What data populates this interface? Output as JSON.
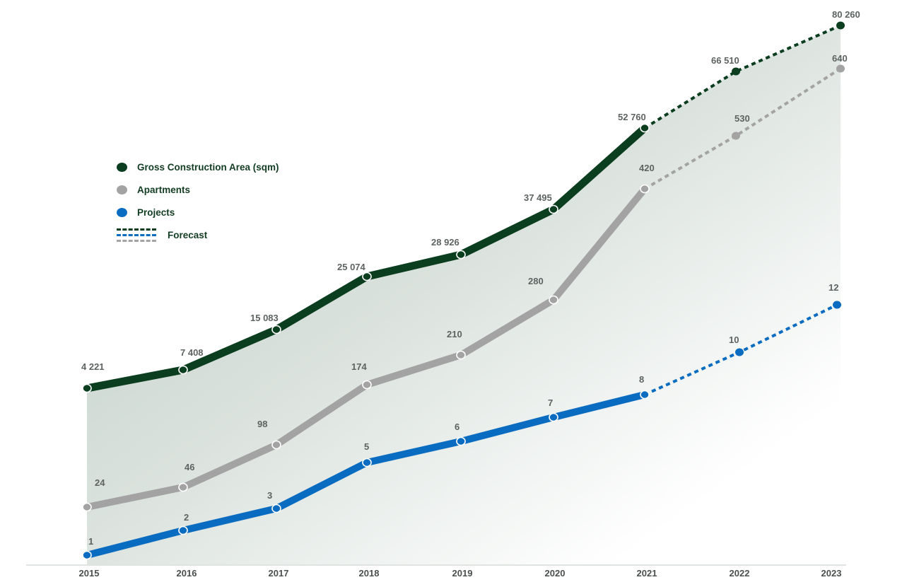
{
  "chart_data": {
    "type": "line",
    "title": "",
    "xlabel": "",
    "ylabel": "",
    "grid": false,
    "legend_position": "upper-left",
    "categories": [
      "2015",
      "2016",
      "2017",
      "2018",
      "2019",
      "2020",
      "2021",
      "2022",
      "2023"
    ],
    "forecast_from": "2021",
    "series": [
      {
        "key": "gca",
        "name": "Gross Construction Area (sqm)",
        "color": "#0b3d1f",
        "values": [
          4221,
          7408,
          15083,
          25074,
          28926,
          37495,
          52760,
          66510,
          80260
        ],
        "labels": [
          "4 221",
          "7 408",
          "15 083",
          "25 074",
          "28 926",
          "37 495",
          "52 760",
          "66 510",
          "80 260"
        ]
      },
      {
        "key": "apartments",
        "name": "Apartments",
        "color": "#a3a3a3",
        "values": [
          24,
          46,
          98,
          174,
          210,
          280,
          420,
          530,
          640
        ],
        "labels": [
          "24",
          "46",
          "98",
          "174",
          "210",
          "280",
          "420",
          "530",
          "640"
        ]
      },
      {
        "key": "projects",
        "name": "Projects",
        "color": "#0a6cc0",
        "values": [
          1,
          2,
          3,
          5,
          6,
          7,
          8,
          10,
          12
        ],
        "labels": [
          "1",
          "2",
          "3",
          "5",
          "6",
          "7",
          "8",
          "10",
          "12"
        ],
        "forecast_points": [
          "2022",
          "2023"
        ]
      }
    ],
    "forecast_legend_label": "Forecast",
    "area_fill": "gradient under Gross Construction Area line"
  }
}
